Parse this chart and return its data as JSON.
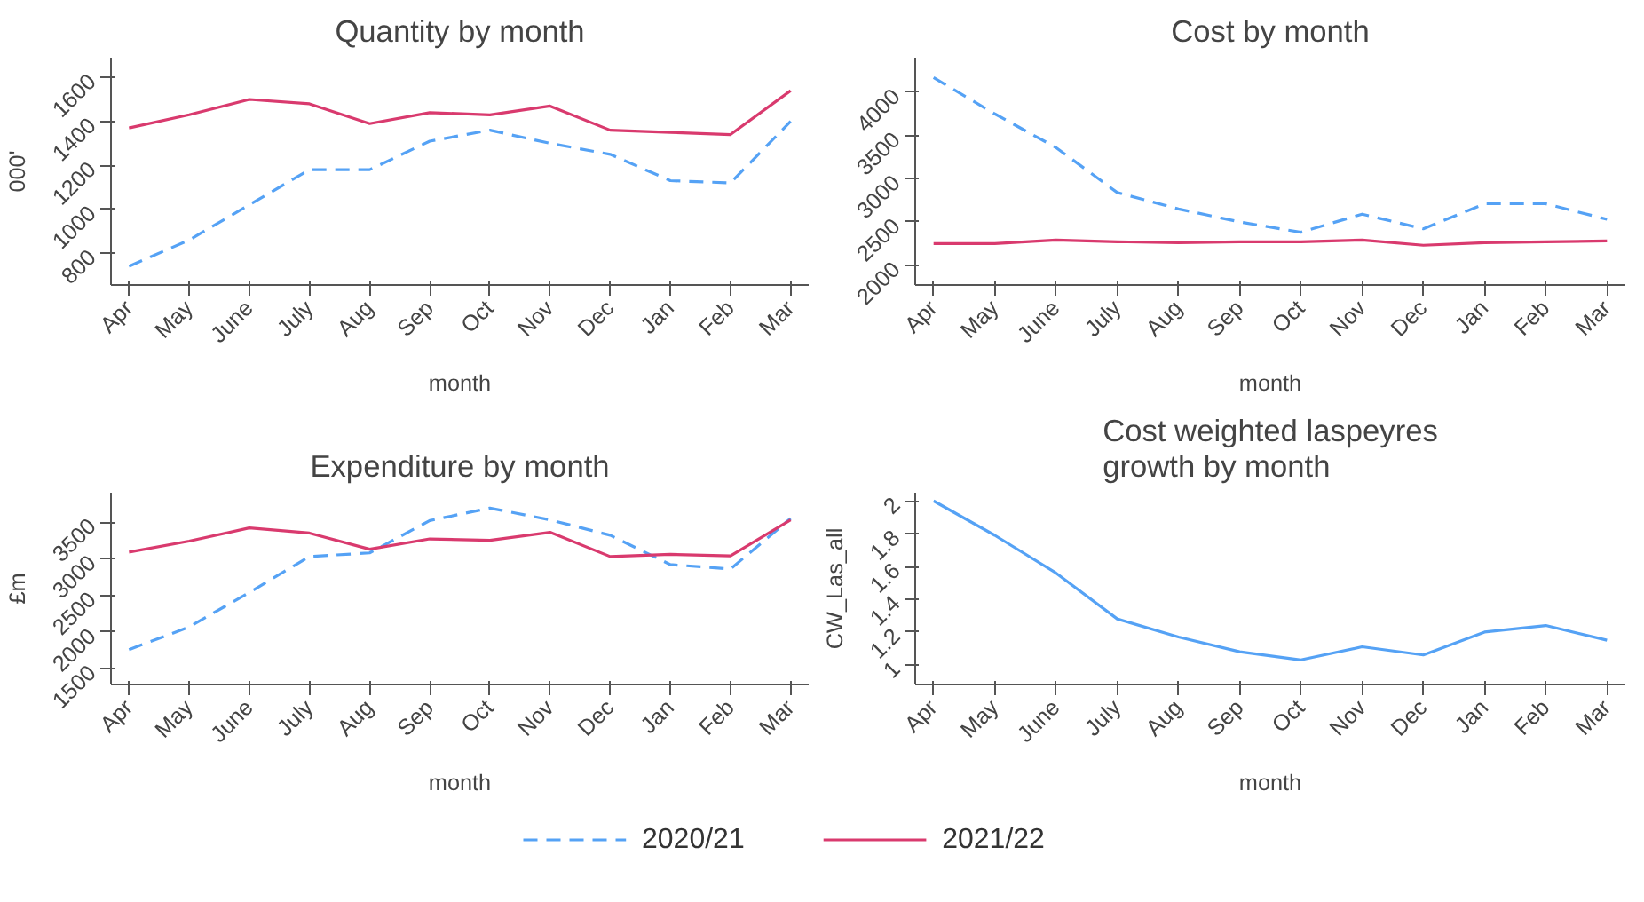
{
  "chart_data": [
    {
      "type": "line",
      "title": "Quantity by month",
      "xlabel": "month",
      "ylabel": "000'",
      "categories": [
        "Apr",
        "May",
        "June",
        "July",
        "Aug",
        "Sep",
        "Oct",
        "Nov",
        "Dec",
        "Jan",
        "Feb",
        "Mar"
      ],
      "ylim": [
        655,
        1690
      ],
      "yticks": [
        800,
        1000,
        1200,
        1400,
        1600
      ],
      "grid": false,
      "legend": "bottom",
      "series": [
        {
          "name": "2020/21",
          "color": "#55a2f5",
          "line_style": "dashed",
          "values": [
            740,
            860,
            1020,
            1180,
            1180,
            1310,
            1360,
            1300,
            1250,
            1130,
            1120,
            1400
          ]
        },
        {
          "name": "2021/22",
          "color": "#d93a6e",
          "line_style": "solid",
          "values": [
            1370,
            1430,
            1500,
            1480,
            1390,
            1440,
            1430,
            1470,
            1360,
            1350,
            1340,
            1540
          ]
        }
      ]
    },
    {
      "type": "line",
      "title": "Cost by month",
      "xlabel": "month",
      "categories": [
        "Apr",
        "May",
        "June",
        "July",
        "Aug",
        "Sep",
        "Oct",
        "Nov",
        "Dec",
        "Jan",
        "Feb",
        "Mar"
      ],
      "ylim": [
        1770,
        4400
      ],
      "yticks": [
        2000,
        2500,
        3000,
        3500,
        4000
      ],
      "grid": false,
      "series": [
        {
          "color": "#55a2f5",
          "line_style": "dashed",
          "values": [
            4170,
            3750,
            3360,
            2840,
            2650,
            2500,
            2380,
            2590,
            2420,
            2710,
            2710,
            2530
          ]
        },
        {
          "color": "#d93a6e",
          "line_style": "solid",
          "values": [
            2250,
            2250,
            2290,
            2270,
            2260,
            2270,
            2270,
            2290,
            2230,
            2260,
            2270,
            2280
          ]
        }
      ]
    },
    {
      "type": "line",
      "title": "Expenditure by month",
      "xlabel": "month",
      "ylabel": "£m",
      "categories": [
        "Apr",
        "May",
        "June",
        "July",
        "Aug",
        "Sep",
        "Oct",
        "Nov",
        "Dec",
        "Jan",
        "Feb",
        "Mar"
      ],
      "ylim": [
        1285,
        3900
      ],
      "yticks": [
        1500,
        2000,
        2500,
        3000,
        3500
      ],
      "grid": false,
      "series": [
        {
          "color": "#55a2f5",
          "line_style": "dashed",
          "values": [
            1760,
            2070,
            2540,
            3030,
            3080,
            3520,
            3690,
            3530,
            3320,
            2920,
            2860,
            3550
          ]
        },
        {
          "color": "#d93a6e",
          "line_style": "solid",
          "values": [
            3090,
            3240,
            3420,
            3350,
            3130,
            3270,
            3250,
            3360,
            3030,
            3060,
            3040,
            3530
          ]
        }
      ]
    },
    {
      "type": "line",
      "title": "Cost weighted laspeyres\ngrowth by month",
      "xlabel": "month",
      "ylabel": "CW_Las_all",
      "categories": [
        "Apr",
        "May",
        "June",
        "July",
        "Aug",
        "Sep",
        "Oct",
        "Nov",
        "Dec",
        "Jan",
        "Feb",
        "Mar"
      ],
      "ylim": [
        0.88,
        2.05
      ],
      "yticks": [
        1,
        1.2,
        1.4,
        1.6,
        1.8,
        2
      ],
      "grid": false,
      "series": [
        {
          "color": "#55a2f5",
          "line_style": "solid",
          "values": [
            2.0,
            1.79,
            1.56,
            1.28,
            1.17,
            1.08,
            1.03,
            1.11,
            1.06,
            1.2,
            1.24,
            1.15
          ]
        }
      ]
    }
  ]
}
